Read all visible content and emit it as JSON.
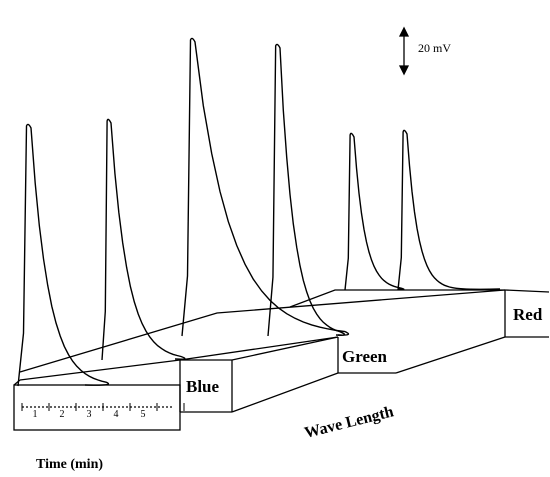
{
  "chart_data": {
    "type": "line",
    "style": "3d-waterfall",
    "scale_bar": "20 mV",
    "time_axis": {
      "label": "Time (min)",
      "ticks": [
        "1",
        "2",
        "3",
        "4",
        "5"
      ]
    },
    "depth_axis": {
      "label": "Wave Length",
      "categories": [
        "Blue",
        "Green",
        "Red"
      ]
    },
    "peaks_relative_height": [
      {
        "channel": "Blue",
        "peak": 1,
        "height": 0.88
      },
      {
        "channel": "Blue",
        "peak": 2,
        "height": 0.81
      },
      {
        "channel": "Green",
        "peak": 1,
        "height": 1.0
      },
      {
        "channel": "Green",
        "peak": 2,
        "height": 0.98
      },
      {
        "channel": "Red",
        "peak": 1,
        "height": 0.53
      },
      {
        "channel": "Red",
        "peak": 2,
        "height": 0.54
      }
    ],
    "colors": {
      "line": "#000000",
      "background": "#ffffff"
    }
  }
}
